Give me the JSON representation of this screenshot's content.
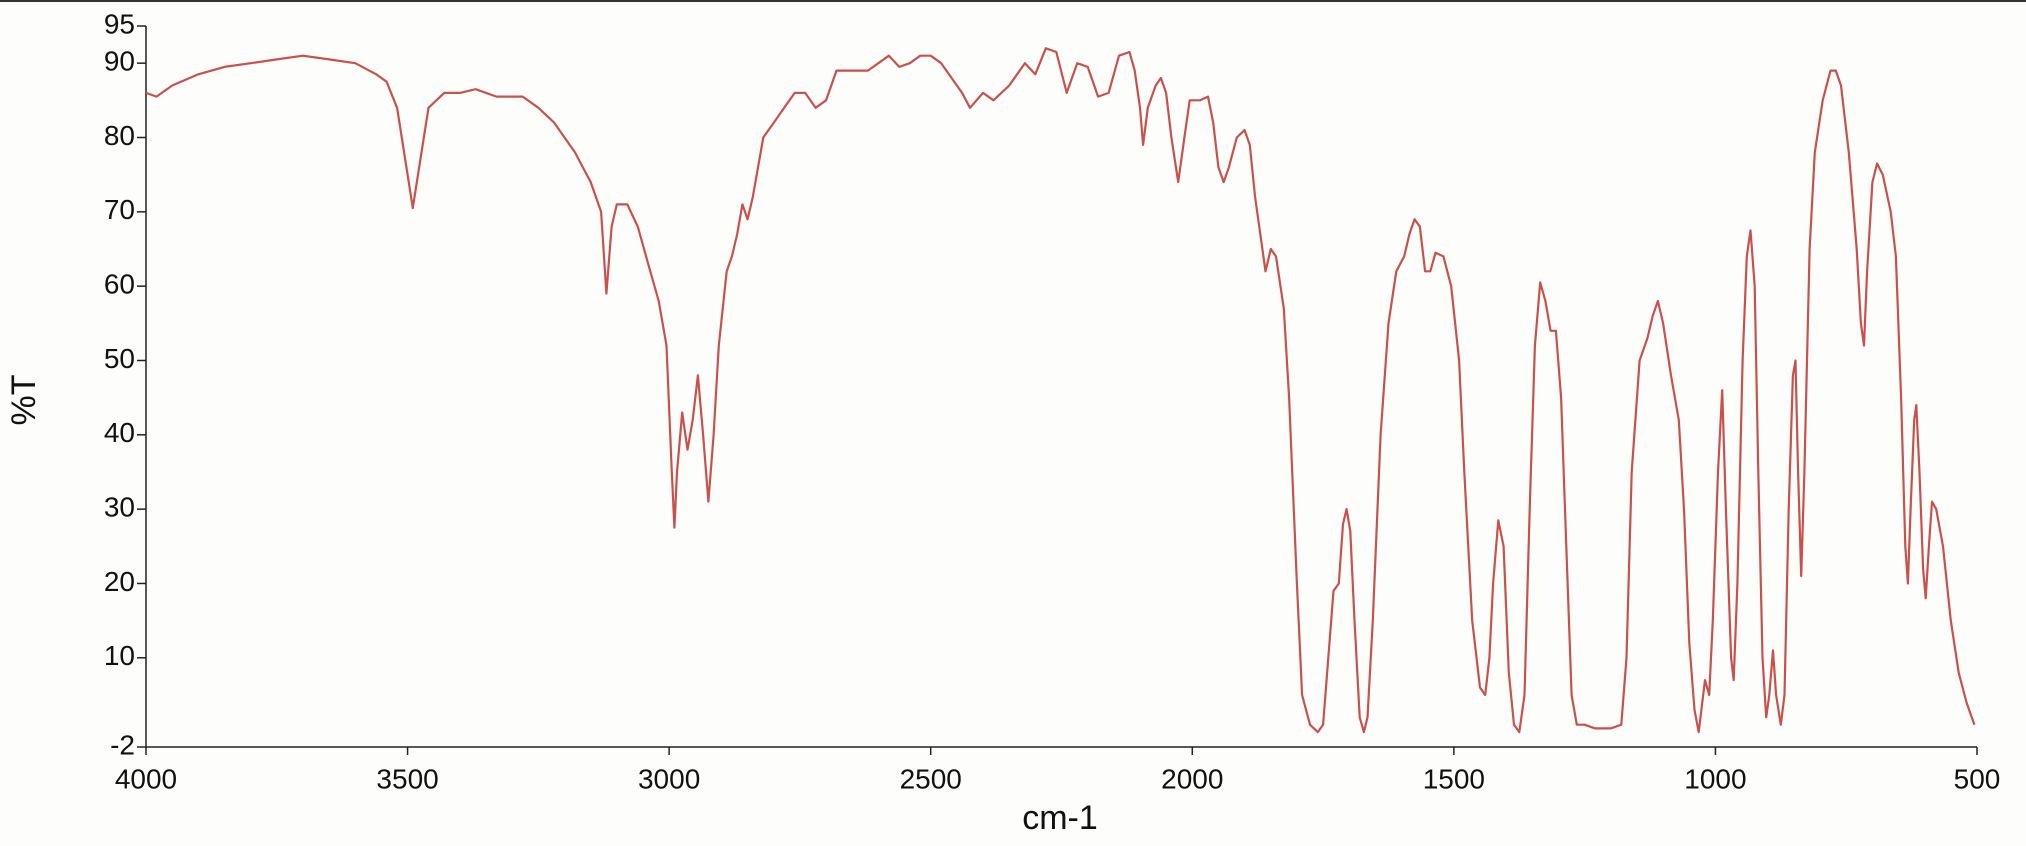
{
  "chart_data": {
    "type": "line",
    "xlabel": "cm-1",
    "ylabel": "%T",
    "color": "#c9514b",
    "xlim": [
      4000,
      500
    ],
    "ylim": [
      -2,
      95
    ],
    "xticks": [
      4000,
      3500,
      3000,
      2500,
      2000,
      1500,
      1000,
      500
    ],
    "yticks": [
      -2,
      10,
      20,
      30,
      40,
      50,
      60,
      70,
      80,
      90,
      95
    ],
    "x": [
      4000,
      3980,
      3950,
      3900,
      3850,
      3800,
      3750,
      3700,
      3650,
      3600,
      3560,
      3540,
      3520,
      3500,
      3490,
      3480,
      3460,
      3430,
      3400,
      3370,
      3330,
      3280,
      3250,
      3220,
      3180,
      3150,
      3130,
      3120,
      3110,
      3100,
      3080,
      3060,
      3040,
      3020,
      3005,
      2995,
      2990,
      2985,
      2975,
      2965,
      2955,
      2945,
      2935,
      2925,
      2915,
      2905,
      2890,
      2880,
      2870,
      2860,
      2850,
      2840,
      2820,
      2800,
      2780,
      2760,
      2740,
      2720,
      2700,
      2680,
      2650,
      2620,
      2600,
      2580,
      2560,
      2540,
      2520,
      2500,
      2480,
      2460,
      2440,
      2425,
      2400,
      2380,
      2350,
      2320,
      2300,
      2280,
      2260,
      2240,
      2220,
      2200,
      2180,
      2160,
      2140,
      2120,
      2110,
      2100,
      2094,
      2085,
      2070,
      2060,
      2050,
      2040,
      2027,
      2015,
      2005,
      1985,
      1970,
      1960,
      1950,
      1940,
      1930,
      1915,
      1900,
      1890,
      1880,
      1870,
      1860,
      1850,
      1840,
      1825,
      1815,
      1800,
      1790,
      1775,
      1760,
      1750,
      1740,
      1730,
      1720,
      1712,
      1705,
      1698,
      1690,
      1680,
      1672,
      1665,
      1655,
      1640,
      1625,
      1610,
      1595,
      1585,
      1575,
      1565,
      1555,
      1545,
      1535,
      1520,
      1505,
      1490,
      1480,
      1465,
      1450,
      1440,
      1432,
      1425,
      1415,
      1405,
      1395,
      1385,
      1375,
      1365,
      1355,
      1345,
      1335,
      1325,
      1315,
      1305,
      1295,
      1285,
      1275,
      1265,
      1250,
      1230,
      1200,
      1180,
      1170,
      1160,
      1145,
      1130,
      1120,
      1110,
      1100,
      1085,
      1070,
      1060,
      1050,
      1040,
      1032,
      1025,
      1020,
      1012,
      1005,
      995,
      987,
      980,
      970,
      965,
      958,
      948,
      940,
      933,
      925,
      918,
      910,
      903,
      897,
      890,
      884,
      875,
      868,
      860,
      852,
      847,
      842,
      836,
      830,
      820,
      810,
      795,
      780,
      770,
      760,
      745,
      730,
      722,
      716,
      710,
      700,
      691,
      680,
      665,
      655,
      645,
      637,
      632,
      627,
      620,
      616,
      610,
      603,
      598,
      592,
      586,
      578,
      565,
      550,
      535,
      520,
      505
    ],
    "values": [
      86,
      85.5,
      87,
      88.5,
      89.5,
      90,
      90.5,
      91,
      90.5,
      90,
      88.5,
      87.5,
      84,
      75,
      70.5,
      75,
      84,
      86,
      86,
      86.5,
      85.5,
      85.5,
      84,
      82,
      78,
      74,
      70,
      59,
      68,
      71,
      71,
      68,
      63,
      58,
      52,
      35,
      27.5,
      35,
      43,
      38,
      42,
      48,
      40,
      31,
      40,
      52,
      62,
      64,
      67,
      71,
      69,
      72,
      80,
      82,
      84,
      86,
      86,
      84,
      85,
      89,
      89,
      89,
      90,
      91,
      89.5,
      90,
      91,
      91,
      90,
      88,
      86,
      84,
      86,
      85,
      87,
      90,
      88.5,
      92,
      91.5,
      86,
      90,
      89.5,
      85.5,
      86,
      91,
      91.5,
      89,
      84,
      79,
      84,
      87,
      88,
      86,
      80,
      74,
      80,
      85,
      85,
      85.5,
      82,
      76,
      74,
      76,
      80,
      81,
      79,
      72,
      67,
      62,
      65,
      64,
      57,
      45,
      20,
      5,
      1,
      0,
      1,
      10,
      19,
      20,
      28,
      30,
      27,
      15,
      2,
      0,
      2,
      15,
      40,
      55,
      62,
      64,
      67,
      69,
      68,
      62,
      62,
      64.5,
      64,
      60,
      50,
      35,
      15,
      6,
      5,
      10,
      20,
      28.5,
      25,
      8,
      1,
      0,
      5,
      30,
      52,
      60.5,
      58,
      54,
      54,
      45,
      25,
      5,
      1,
      1,
      0.5,
      0.5,
      1,
      10,
      35,
      50,
      53,
      56,
      58,
      55,
      48,
      42,
      30,
      12,
      3,
      0,
      4,
      7,
      5,
      15,
      35,
      46,
      30,
      10,
      7,
      20,
      50,
      64,
      67.5,
      60,
      35,
      10,
      2,
      5,
      11,
      5,
      1,
      5,
      30,
      48,
      50,
      35,
      21,
      35,
      65,
      78,
      85,
      89,
      89,
      87,
      78,
      65,
      55,
      52,
      62,
      74,
      76.5,
      75,
      70,
      64,
      45,
      25,
      20,
      30,
      42,
      44,
      35,
      22,
      18,
      25,
      31,
      30,
      25,
      15,
      8,
      4,
      1
    ]
  }
}
